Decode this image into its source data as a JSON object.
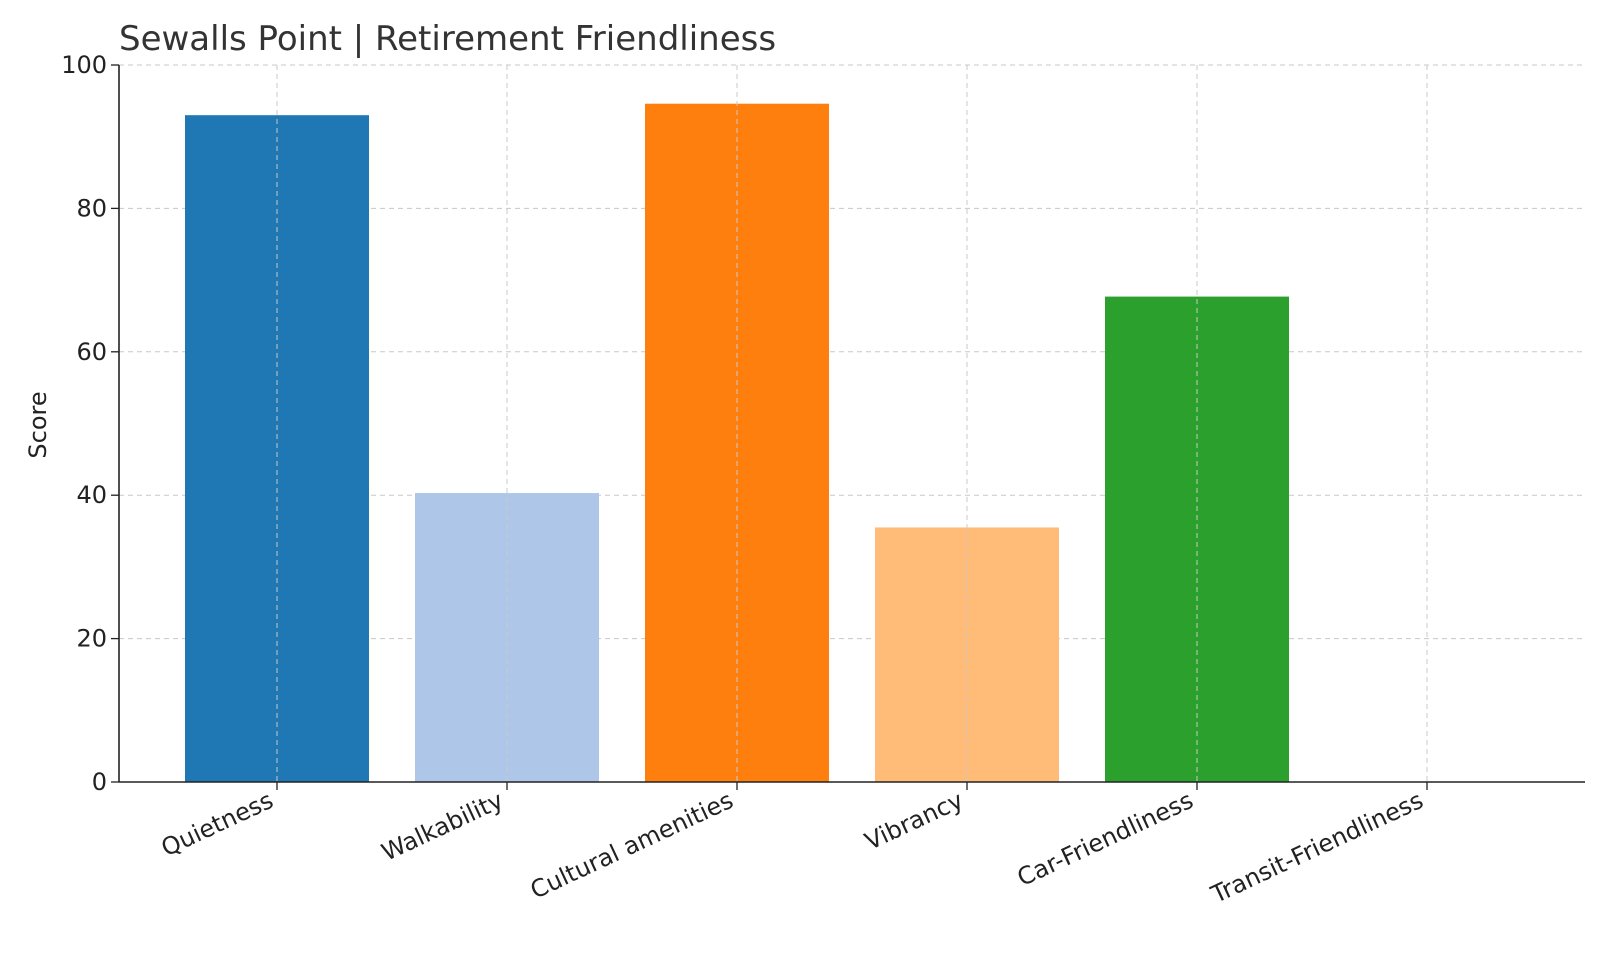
{
  "chart_data": {
    "type": "bar",
    "title": "Sewalls Point | Retirement Friendliness",
    "xlabel": "",
    "ylabel": "Score",
    "categories": [
      "Quietness",
      "Walkability",
      "Cultural amenities",
      "Vibrancy",
      "Car-Friendliness",
      "Transit-Friendliness"
    ],
    "values": [
      93,
      40.3,
      94.6,
      35.5,
      67.7,
      0
    ],
    "colors": [
      "#1f77b4",
      "#aec7e8",
      "#ff7f0e",
      "#ffbb78",
      "#2ca02c",
      "#98df8a"
    ],
    "ylim": [
      0,
      100
    ],
    "yticks": [
      "0",
      "20",
      "40",
      "60",
      "80",
      "100"
    ],
    "grid": true
  }
}
